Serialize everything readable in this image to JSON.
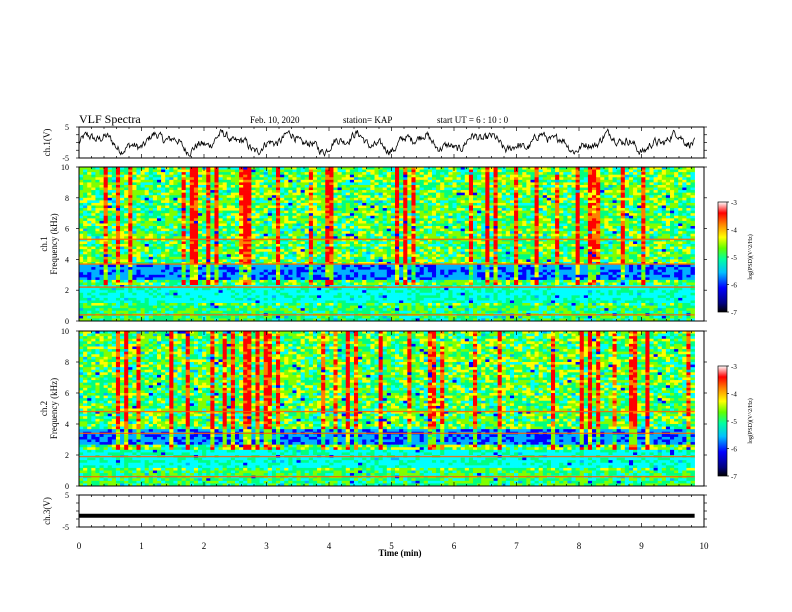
{
  "header": {
    "title": "VLF Spectra",
    "date": "Feb. 10, 2020",
    "station": "station= KAP",
    "start_ut": "start UT =  6 : 10 : 0"
  },
  "chart_data": [
    {
      "type": "line",
      "panel": "ch1-waveform",
      "ylabel": "ch.1(V)",
      "ylim": [
        -5,
        5
      ],
      "y_tick_labels": [
        "5",
        "-5"
      ],
      "x_range_min": [
        0,
        9.85
      ],
      "description_note": "noisy waveform trace around 0 V",
      "color": "#000000"
    },
    {
      "type": "heatmap",
      "panel": "ch1-spectrogram",
      "ylabel": "ch.1\nFrequency (kHz)",
      "ylim": [
        0,
        10
      ],
      "y_ticks": [
        0,
        2,
        4,
        6,
        8,
        10
      ],
      "x_range_min": [
        0,
        9.85
      ],
      "colorbar": {
        "label": "log(PSD)(V^2/Hz)",
        "range": [
          -7,
          -3
        ],
        "ticks": [
          -3,
          -4,
          -5,
          -6,
          -7
        ]
      }
    },
    {
      "type": "heatmap",
      "panel": "ch2-spectrogram",
      "ylabel": "ch.2\nFrequency (kHz)",
      "ylim": [
        0,
        10
      ],
      "y_ticks": [
        0,
        2,
        4,
        6,
        8,
        10
      ],
      "x_range_min": [
        0,
        9.85
      ],
      "colorbar": {
        "label": "log(PSD)(V^2/Hz)",
        "range": [
          -7,
          -3
        ],
        "ticks": [
          -3,
          -4,
          -5,
          -6,
          -7
        ]
      }
    },
    {
      "type": "line",
      "panel": "ch3-waveform",
      "ylabel": "ch.3(V)",
      "ylim": [
        -5,
        5
      ],
      "y_tick_labels": [
        "5",
        "-5"
      ],
      "x_range_min": [
        0,
        9.85
      ],
      "values_constant": -1.5,
      "color": "#000000"
    }
  ],
  "x_axis": {
    "label": "Time (min)",
    "range": [
      0,
      10
    ],
    "ticks": [
      0,
      1,
      2,
      3,
      4,
      5,
      6,
      7,
      8,
      9,
      10
    ]
  },
  "colorscale": [
    "#000080",
    "#0000ff",
    "#00b0ff",
    "#00ffff",
    "#00ff80",
    "#80ff00",
    "#ffff00",
    "#ff8000",
    "#ff0000",
    "#ffffff"
  ]
}
